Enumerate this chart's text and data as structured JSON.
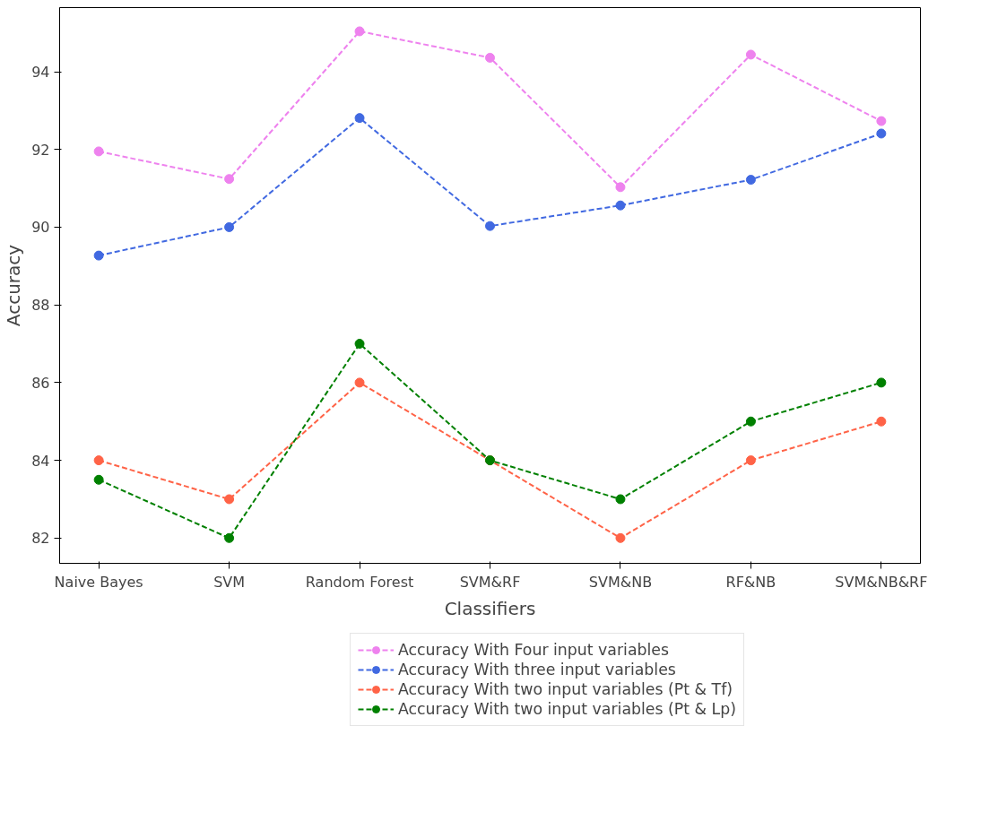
{
  "chart_data": {
    "type": "line",
    "xlabel": "Classifiers",
    "ylabel": "Accuracy",
    "categories": [
      "Naive Bayes",
      "SVM",
      "Random Forest",
      "SVM&RF",
      "SVM&NB",
      "RF&NB",
      "SVM&NB&RF"
    ],
    "series": [
      {
        "name": "Accuracy With Four input variables",
        "color": "#ee82ee",
        "values": [
          91.95,
          91.24,
          95.04,
          94.36,
          91.03,
          94.44,
          92.73
        ]
      },
      {
        "name": "Accuracy With three input variables",
        "color": "#4169e1",
        "values": [
          89.27,
          90.0,
          92.81,
          90.03,
          90.56,
          91.22,
          92.41
        ]
      },
      {
        "name": "Accuracy With two input variables (Pt & Tf)",
        "color": "#ff6347",
        "values": [
          84,
          83,
          86,
          84,
          82,
          84,
          85
        ]
      },
      {
        "name": "Accuracy With two input variables (Pt & Lp)",
        "color": "#008000",
        "values": [
          83.5,
          82,
          87,
          84,
          83,
          85,
          86
        ]
      }
    ],
    "ylim": [
      81.35,
      95.65
    ],
    "yticks": [
      82,
      84,
      86,
      88,
      90,
      92,
      94
    ],
    "grid": false,
    "legend": "bottom",
    "marker": "circle",
    "line_style": "dashed"
  }
}
